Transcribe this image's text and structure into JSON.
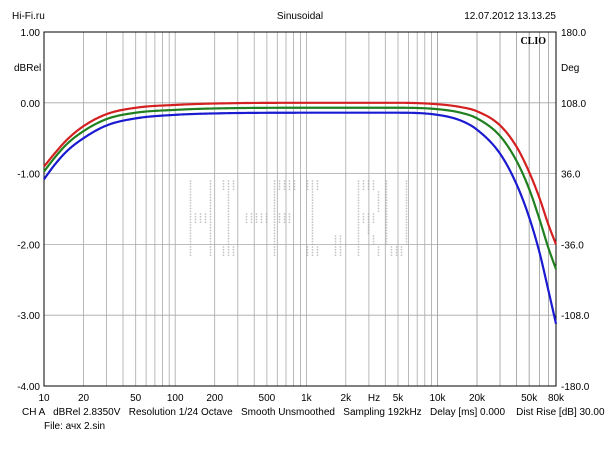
{
  "header": {
    "left": "Hi-Fi.ru",
    "center": "Sinusoidal",
    "right": "12.07.2012 13.13.25"
  },
  "brand": "CLIO",
  "watermark": "Hi-Fi.ru",
  "footer": {
    "line1": "CH A   dBRel 2.8350V   Resolution 1/24 Octave   Smooth Unsmoothed   Sampling 192kHz   Delay [ms] 0.000    Dist Rise [dB] 30.00",
    "line2": "File: ачх 2.sin"
  },
  "chart_data": {
    "type": "line",
    "title": "Sinusoidal",
    "xlabel": "Hz",
    "ylabel": "dBRel",
    "y2label": "Deg",
    "xscale": "log",
    "xlim": [
      10,
      80000
    ],
    "ylim": [
      -4.0,
      1.0
    ],
    "y2lim": [
      -180.0,
      180.0
    ],
    "grid": true,
    "x_ticks": [
      {
        "value": 10,
        "label": "10"
      },
      {
        "value": 20,
        "label": "20"
      },
      {
        "value": 50,
        "label": "50"
      },
      {
        "value": 100,
        "label": "100"
      },
      {
        "value": 200,
        "label": "200"
      },
      {
        "value": 500,
        "label": "500"
      },
      {
        "value": 1000,
        "label": "1k"
      },
      {
        "value": 2000,
        "label": "2k"
      },
      {
        "value": 5000,
        "label": "5k"
      },
      {
        "value": 10000,
        "label": "10k"
      },
      {
        "value": 20000,
        "label": "20k"
      },
      {
        "value": 50000,
        "label": "50k"
      },
      {
        "value": 80000,
        "label": "80k"
      }
    ],
    "y_ticks": [
      {
        "value": 1.0,
        "label": "1.00"
      },
      {
        "value": 0.0,
        "label": "0.00"
      },
      {
        "value": -1.0,
        "label": "-1.00"
      },
      {
        "value": -2.0,
        "label": "-2.00"
      },
      {
        "value": -3.0,
        "label": "-3.00"
      },
      {
        "value": -4.0,
        "label": "-4.00"
      }
    ],
    "y2_ticks": [
      {
        "value": 180.0,
        "label": "180.0"
      },
      {
        "value": 108.0,
        "label": "108.0"
      },
      {
        "value": 36.0,
        "label": "36.0"
      },
      {
        "value": -36.0,
        "label": "-36.0"
      },
      {
        "value": -108.0,
        "label": "-108.0"
      },
      {
        "value": -180.0,
        "label": "-180.0"
      }
    ],
    "series": [
      {
        "color": "#d42020",
        "points": [
          [
            10,
            -0.9
          ],
          [
            12,
            -0.72
          ],
          [
            15,
            -0.52
          ],
          [
            20,
            -0.33
          ],
          [
            30,
            -0.16
          ],
          [
            50,
            -0.07
          ],
          [
            100,
            -0.03
          ],
          [
            200,
            -0.01
          ],
          [
            1000,
            0.0
          ],
          [
            5000,
            0.0
          ],
          [
            10000,
            -0.02
          ],
          [
            15000,
            -0.06
          ],
          [
            20000,
            -0.12
          ],
          [
            30000,
            -0.32
          ],
          [
            40000,
            -0.62
          ],
          [
            50000,
            -0.98
          ],
          [
            60000,
            -1.35
          ],
          [
            70000,
            -1.72
          ],
          [
            80000,
            -2.0
          ]
        ]
      },
      {
        "color": "#208020",
        "points": [
          [
            10,
            -0.97
          ],
          [
            12,
            -0.78
          ],
          [
            15,
            -0.58
          ],
          [
            20,
            -0.4
          ],
          [
            30,
            -0.23
          ],
          [
            50,
            -0.14
          ],
          [
            100,
            -0.1
          ],
          [
            200,
            -0.08
          ],
          [
            1000,
            -0.07
          ],
          [
            5000,
            -0.07
          ],
          [
            10000,
            -0.09
          ],
          [
            15000,
            -0.14
          ],
          [
            20000,
            -0.22
          ],
          [
            30000,
            -0.47
          ],
          [
            40000,
            -0.82
          ],
          [
            50000,
            -1.22
          ],
          [
            60000,
            -1.65
          ],
          [
            70000,
            -2.05
          ],
          [
            80000,
            -2.35
          ]
        ]
      },
      {
        "color": "#1a1ad0",
        "points": [
          [
            10,
            -1.08
          ],
          [
            12,
            -0.88
          ],
          [
            15,
            -0.68
          ],
          [
            20,
            -0.5
          ],
          [
            30,
            -0.32
          ],
          [
            50,
            -0.22
          ],
          [
            100,
            -0.17
          ],
          [
            200,
            -0.15
          ],
          [
            1000,
            -0.14
          ],
          [
            5000,
            -0.14
          ],
          [
            10000,
            -0.17
          ],
          [
            15000,
            -0.25
          ],
          [
            20000,
            -0.38
          ],
          [
            30000,
            -0.72
          ],
          [
            40000,
            -1.15
          ],
          [
            50000,
            -1.62
          ],
          [
            60000,
            -2.12
          ],
          [
            70000,
            -2.65
          ],
          [
            80000,
            -3.12
          ]
        ]
      }
    ]
  }
}
